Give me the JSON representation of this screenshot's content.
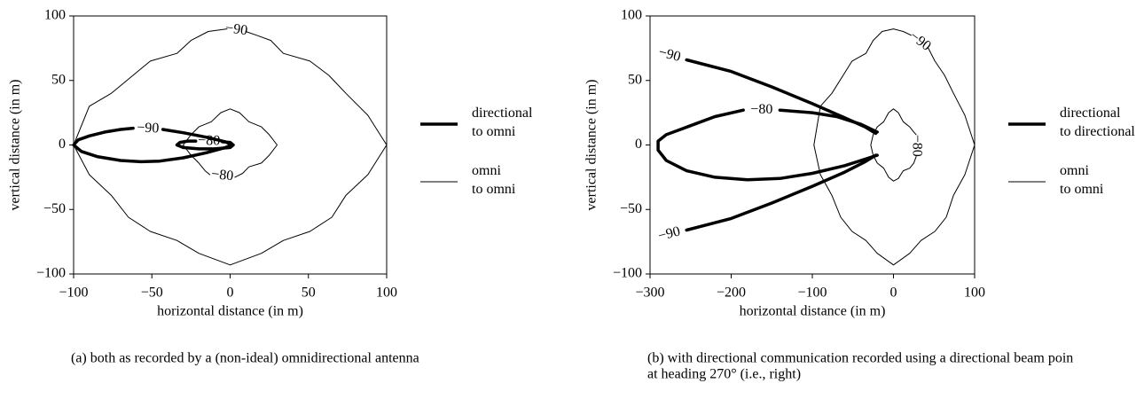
{
  "chart_data": [
    {
      "type": "contour",
      "xlabel": "horizontal distance (in m)",
      "ylabel": "vertical distance (in m)",
      "xlim": [
        -100,
        100
      ],
      "ylim": [
        -100,
        100
      ],
      "xticks": [
        {
          "value": -100,
          "label": "−100"
        },
        {
          "value": -50,
          "label": "−50"
        },
        0,
        50,
        100
      ],
      "yticks": [
        {
          "value": -100,
          "label": "−100"
        },
        {
          "value": -50,
          "label": "−50"
        },
        0,
        50,
        100
      ],
      "series": [
        {
          "name": "directional to omni",
          "color": "#000000",
          "linewidth": 3.5,
          "contours": [
            {
              "label": "−90",
              "x": [
                -43,
                -30,
                -15,
                -3,
                1,
                -3,
                -15,
                -30,
                -45,
                -57,
                -70,
                -85,
                -95,
                -100,
                -97,
                -90,
                -80,
                -70,
                -62
              ],
              "y": [
                12,
                9.5,
                6,
                2.5,
                0,
                -2,
                -6,
                -10,
                -12.5,
                -13,
                -12,
                -9,
                -5,
                0,
                4,
                7,
                10,
                12,
                13
              ]
            },
            {
              "label": "−80",
              "x": [
                -5,
                0,
                2,
                0,
                -10,
                -20,
                -30,
                -34,
                -32,
                -27,
                -22
              ],
              "y": [
                2.5,
                2,
                0,
                -2,
                -3,
                -3,
                -2,
                0,
                2,
                3,
                3
              ]
            }
          ]
        },
        {
          "name": "omni to omni",
          "color": "#000000",
          "linewidth": 1,
          "contours": [
            {
              "label": "−90",
              "x": [
                10,
                17,
                26,
                34,
                51,
                63,
                74,
                88,
                100,
                88,
                74,
                65,
                51,
                34,
                20,
                0,
                -20,
                -34,
                -51,
                -65,
                -76,
                -90,
                -100,
                -90,
                -76,
                -62,
                -51,
                -34,
                -25,
                -14,
                -2
              ],
              "y": [
                88,
                85,
                81,
                71,
                65,
                54,
                40,
                23,
                0,
                -23,
                -39,
                -56,
                -67,
                -74,
                -84,
                -93,
                -84,
                -74,
                -67,
                -56,
                -39,
                -23,
                0,
                30,
                40,
                54,
                65,
                71,
                81,
                88,
                90
              ]
            },
            {
              "label": "−80",
              "x": [
                3,
                8,
                12,
                20,
                25,
                30,
                25,
                20,
                12,
                6,
                0,
                -6,
                -12,
                -20,
                -25,
                -30,
                -25,
                -20,
                -16,
                -13
              ],
              "y": [
                -25,
                -22,
                -17,
                -14,
                -8,
                0,
                8,
                14,
                18,
                25,
                28,
                25,
                18,
                14,
                8,
                0,
                -8,
                -14,
                -20,
                -23
              ]
            }
          ]
        }
      ],
      "caption": [
        "(a) both as recorded by a (non-ideal) omnidirectional antenna"
      ]
    },
    {
      "type": "contour",
      "xlabel": "horizontal distance (in m)",
      "ylabel": "vertical distance (in m)",
      "xlim": [
        -300,
        100
      ],
      "ylim": [
        -100,
        100
      ],
      "xticks": [
        {
          "value": -300,
          "label": "−300"
        },
        {
          "value": -200,
          "label": "−200"
        },
        {
          "value": -100,
          "label": "−100"
        },
        0,
        100
      ],
      "yticks": [
        {
          "value": -100,
          "label": "−100"
        },
        {
          "value": -50,
          "label": "−50"
        },
        0,
        50,
        100
      ],
      "series": [
        {
          "name": "directional to directional",
          "color": "#000000",
          "linewidth": 3.5,
          "contours": [
            {
              "label": "−90",
              "x": [
                -255,
                -200,
                -150,
                -100,
                -60,
                -35,
                -22
              ],
              "y": [
                66,
                57,
                45,
                32,
                21,
                14,
                9
              ]
            },
            {
              "label": "−90",
              "x": [
                -255,
                -200,
                -150,
                -100,
                -60,
                -35,
                -22
              ],
              "y": [
                -66,
                -57,
                -45,
                -32,
                -21,
                -13,
                -8
              ]
            },
            {
              "label": "−80",
              "x": [
                -140,
                -100,
                -70,
                -40,
                -20,
                null,
                -20,
                -35,
                -60,
                -100,
                -140,
                -180,
                -220,
                -255,
                -280,
                -290,
                -290,
                -280,
                -250,
                -220,
                -185
              ],
              "y": [
                27,
                25,
                22,
                16,
                10,
                null,
                -8,
                -11,
                -16,
                -22,
                -26,
                -27,
                -25,
                -20,
                -12,
                -4,
                3,
                8,
                15,
                22,
                27
              ]
            }
          ]
        },
        {
          "name": "omni to omni",
          "color": "#000000",
          "linewidth": 1,
          "contours": [
            {
              "label": "−90",
              "x": [
                43,
                51,
                63,
                74,
                88,
                100,
                88,
                74,
                65,
                51,
                34,
                20,
                0,
                -20,
                -34,
                -51,
                -65,
                -76,
                -90,
                -98,
                -90,
                -76,
                -62,
                -51,
                -34,
                -25,
                -14,
                0,
                12,
                22
              ],
              "y": [
                75,
                65,
                54,
                40,
                23,
                0,
                -23,
                -39,
                -56,
                -67,
                -74,
                -84,
                -93,
                -84,
                -74,
                -67,
                -56,
                -39,
                -23,
                0,
                30,
                40,
                54,
                65,
                71,
                81,
                88,
                90,
                88,
                85
              ]
            },
            {
              "label": "−80",
              "x": [
                28,
                25,
                20,
                12,
                6,
                0,
                -6,
                -12,
                -20,
                -25,
                -28,
                -25,
                -20,
                -12,
                -6,
                0,
                6,
                12,
                20,
                25,
                28
              ],
              "y": [
                -9,
                -14,
                -18,
                -20,
                -26,
                -28,
                -25,
                -18,
                -14,
                -8,
                0,
                8,
                14,
                18,
                25,
                28,
                25,
                18,
                14,
                10,
                8
              ]
            }
          ]
        }
      ],
      "caption": [
        "(b) with directional communication recorded using a directional beam poin",
        "at heading 270° (i.e., right)"
      ]
    }
  ]
}
